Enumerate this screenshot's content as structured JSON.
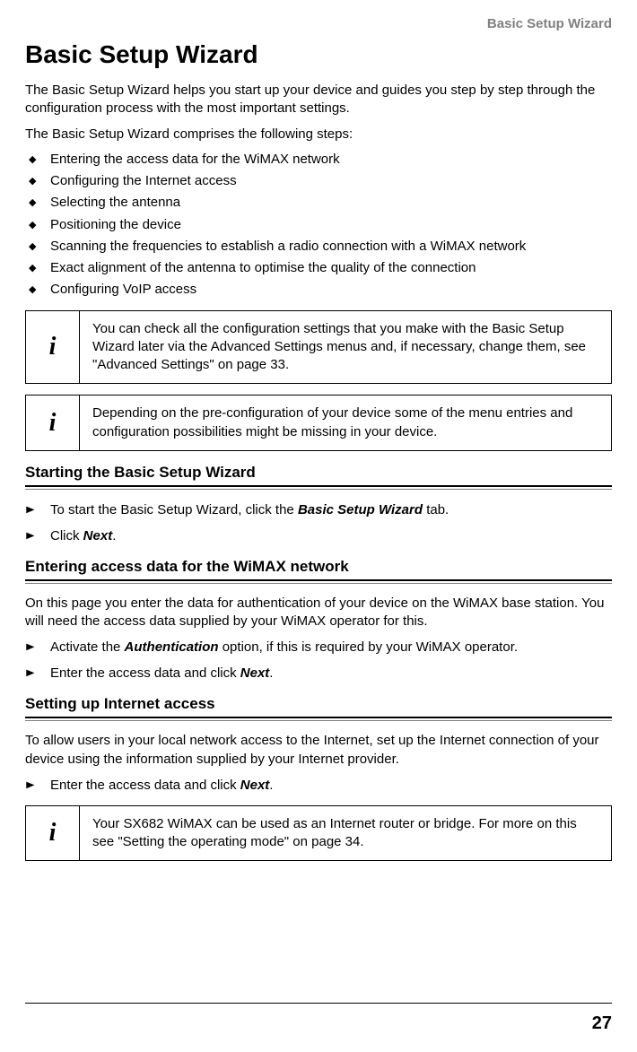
{
  "headerRight": "Basic Setup Wizard",
  "title": "Basic Setup Wizard",
  "intro1": "The Basic Setup Wizard helps you start up your device and guides you step by step through the configuration process with the most important settings.",
  "intro2": "The Basic Setup Wizard comprises the following steps:",
  "bullets": [
    "Entering the access data for the WiMAX network",
    "Configuring the Internet access",
    "Selecting the antenna",
    "Positioning the device",
    "Scanning the frequencies to establish a radio connection with a WiMAX network",
    "Exact alignment of the antenna to optimise the quality of the connection",
    "Configuring VoIP access"
  ],
  "info1": "You can check all the configuration settings that you make with the Basic Setup Wizard later via the Advanced Settings menus and, if necessary, change them, see \"Advanced Settings\" on page 33.",
  "info2": "Depending on the pre-configuration of your device some of the menu entries and configuration possibilities might be missing in your device.",
  "h2a": "Starting the Basic Setup Wizard",
  "step_a1_pre": "To start the Basic Setup Wizard, click the ",
  "step_a1_bi": "Basic Setup Wizard",
  "step_a1_post": " tab.",
  "step_a2_pre": "Click ",
  "step_a2_bi": "Next",
  "step_a2_post": ".",
  "h2b": "Entering access data for the WiMAX network",
  "body_b": "On this page you enter the data for authentication of your device on the WiMAX base station. You will need the access data supplied by your WiMAX operator for this.",
  "step_b1_pre": "Activate the ",
  "step_b1_bi": "Authentication",
  "step_b1_post": " option, if this is required by your WiMAX operator.",
  "step_b2_pre": "Enter the access data and click ",
  "step_b2_bi": "Next",
  "step_b2_post": ".",
  "h2c": "Setting up Internet access",
  "body_c": "To allow users in your local network access to the Internet, set up the Internet connection of your device using the information supplied by your Internet provider.",
  "step_c1_pre": "Enter the access data and click ",
  "step_c1_bi": "Next",
  "step_c1_post": ".",
  "info3": "Your SX682 WiMAX can be used as an Internet router or bridge. For more on this see \"Setting the operating mode\" on page 34.",
  "pageNum": "27",
  "infoIcon": "i"
}
